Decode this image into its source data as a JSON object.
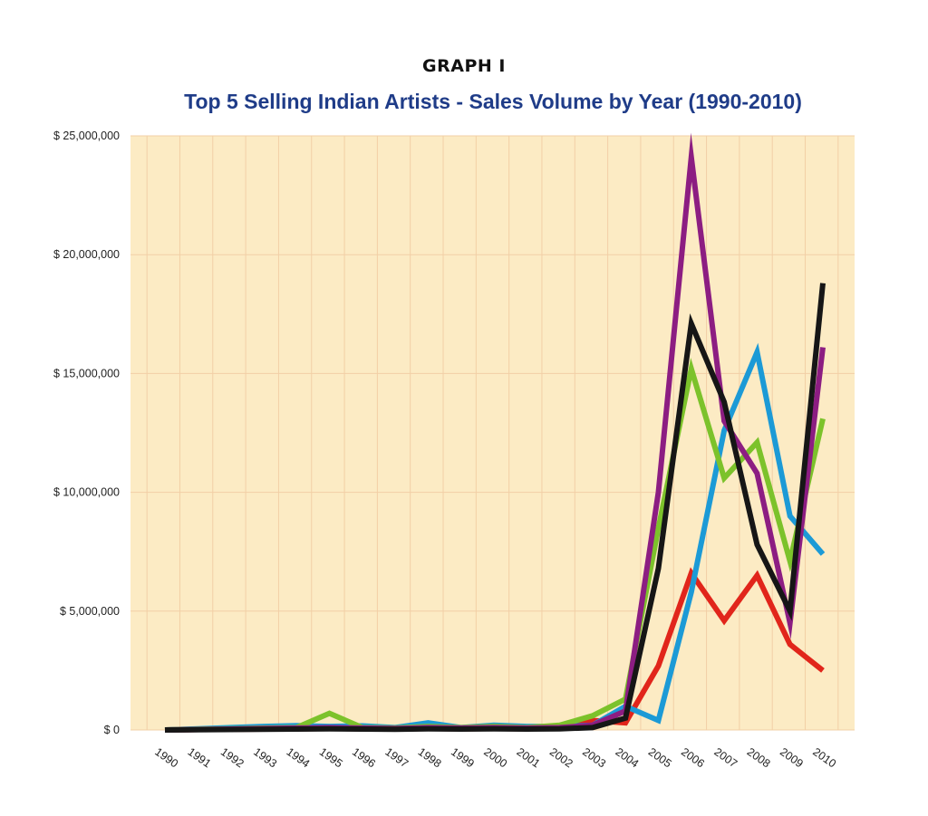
{
  "header": {
    "label": "GRAPH I",
    "title": "Top 5 Selling Indian Artists - Sales Volume by Year (1990-2010)"
  },
  "chart_data": {
    "type": "line",
    "title": "Top 5 Selling Indian Artists - Sales Volume by Year (1990-2010)",
    "xlabel": "",
    "ylabel": "",
    "x": [
      "1990",
      "1991",
      "1992",
      "1993",
      "1994",
      "1995",
      "1996",
      "1997",
      "1998",
      "1999",
      "2000",
      "2001",
      "2002",
      "2003",
      "2004",
      "2005",
      "2006",
      "2007",
      "2008",
      "2009",
      "2010"
    ],
    "ylim": [
      0,
      25000000
    ],
    "yticks": [
      0,
      5000000,
      10000000,
      15000000,
      20000000,
      25000000
    ],
    "ytick_labels": [
      "$ 0",
      "$ 5,000,000",
      "$ 10,000,000",
      "$ 15,000,000",
      "$ 20,000,000",
      "$ 25,000,000"
    ],
    "grid": true,
    "legend": "none",
    "background": "#fcebc4",
    "gridline_color": "#f2cfa6",
    "series": [
      {
        "color": "#e1251b",
        "values": [
          0,
          20000,
          30000,
          40000,
          50000,
          60000,
          50000,
          40000,
          60000,
          50000,
          60000,
          50000,
          100000,
          400000,
          300000,
          2700000,
          6600000,
          4600000,
          6500000,
          3600000,
          2500000
        ]
      },
      {
        "color": "#1c9ad6",
        "values": [
          0,
          50000,
          100000,
          150000,
          180000,
          150000,
          170000,
          100000,
          300000,
          100000,
          200000,
          150000,
          150000,
          200000,
          1000000,
          400000,
          5800000,
          12600000,
          15900000,
          9000000,
          7400000
        ]
      },
      {
        "color": "#7cc22b",
        "values": [
          0,
          30000,
          50000,
          80000,
          100000,
          700000,
          100000,
          80000,
          150000,
          100000,
          150000,
          100000,
          200000,
          600000,
          1300000,
          8500000,
          15200000,
          10600000,
          12100000,
          7100000,
          13100000
        ]
      },
      {
        "color": "#8c1d82",
        "values": [
          0,
          20000,
          40000,
          60000,
          80000,
          100000,
          80000,
          60000,
          100000,
          80000,
          100000,
          80000,
          100000,
          200000,
          800000,
          10000000,
          24100000,
          13000000,
          10800000,
          4500000,
          16100000
        ]
      },
      {
        "color": "#161616",
        "values": [
          0,
          10000,
          20000,
          30000,
          40000,
          50000,
          40000,
          30000,
          50000,
          40000,
          50000,
          40000,
          50000,
          100000,
          500000,
          6800000,
          17100000,
          13800000,
          7800000,
          5000000,
          18800000
        ]
      }
    ]
  }
}
